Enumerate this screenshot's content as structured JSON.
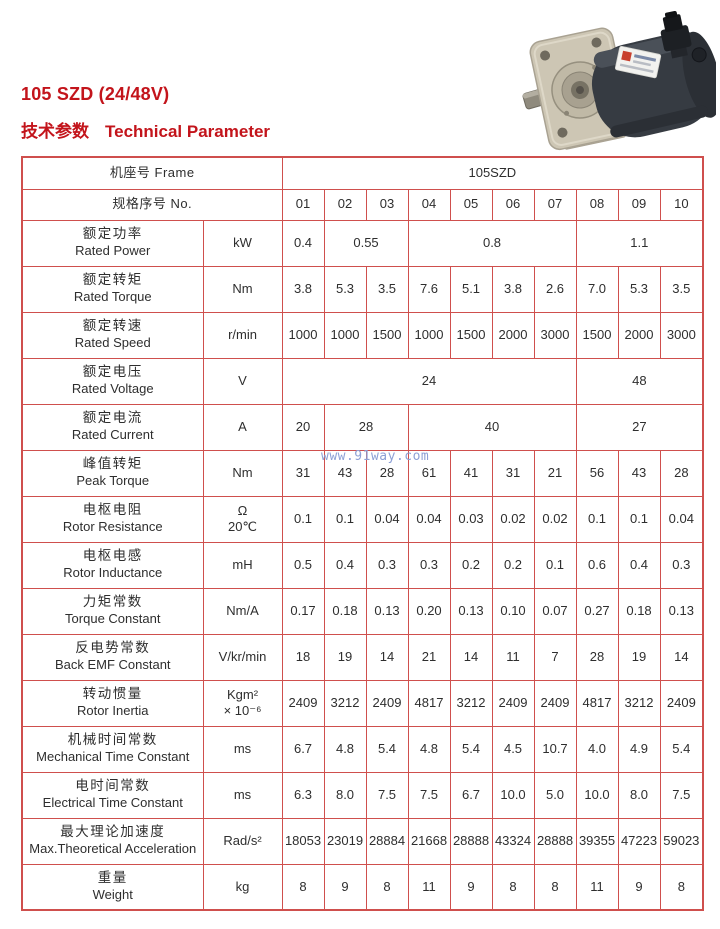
{
  "header": {
    "title": "105 SZD (24/48V)",
    "subtitle_zh": "技术参数",
    "subtitle_en": "Technical Parameter"
  },
  "colors": {
    "accent": "#c3141b",
    "table_border": "#cf4f4d",
    "text": "#2e2e2e",
    "watermark": "#8da0d6"
  },
  "watermark": {
    "text": "www.91way.com"
  },
  "motor_image": {
    "name": "dc-motor-product-photo"
  },
  "table": {
    "frame_label": "机座号 Frame",
    "frame_value": "105SZD",
    "no_label": "规格序号 No.",
    "numbers": [
      "01",
      "02",
      "03",
      "04",
      "05",
      "06",
      "07",
      "08",
      "09",
      "10"
    ],
    "rows": [
      {
        "zh": "额定功率",
        "en": "Rated Power",
        "unit": [
          "kW"
        ],
        "cells": [
          {
            "v": "0.4",
            "s": 1
          },
          {
            "v": "0.55",
            "s": 2
          },
          {
            "v": "0.8",
            "s": 4
          },
          {
            "v": "1.1",
            "s": 3
          }
        ]
      },
      {
        "zh": "额定转矩",
        "en": "Rated Torque",
        "unit": [
          "Nm"
        ],
        "cells": [
          {
            "v": "3.8",
            "s": 1
          },
          {
            "v": "5.3",
            "s": 1
          },
          {
            "v": "3.5",
            "s": 1
          },
          {
            "v": "7.6",
            "s": 1
          },
          {
            "v": "5.1",
            "s": 1
          },
          {
            "v": "3.8",
            "s": 1
          },
          {
            "v": "2.6",
            "s": 1
          },
          {
            "v": "7.0",
            "s": 1
          },
          {
            "v": "5.3",
            "s": 1
          },
          {
            "v": "3.5",
            "s": 1
          }
        ]
      },
      {
        "zh": "额定转速",
        "en": "Rated Speed",
        "unit": [
          "r/min"
        ],
        "cells": [
          {
            "v": "1000",
            "s": 1
          },
          {
            "v": "1000",
            "s": 1
          },
          {
            "v": "1500",
            "s": 1
          },
          {
            "v": "1000",
            "s": 1
          },
          {
            "v": "1500",
            "s": 1
          },
          {
            "v": "2000",
            "s": 1
          },
          {
            "v": "3000",
            "s": 1
          },
          {
            "v": "1500",
            "s": 1
          },
          {
            "v": "2000",
            "s": 1
          },
          {
            "v": "3000",
            "s": 1
          }
        ]
      },
      {
        "zh": "额定电压",
        "en": "Rated Voltage",
        "unit": [
          "V"
        ],
        "cells": [
          {
            "v": "24",
            "s": 7
          },
          {
            "v": "48",
            "s": 3
          }
        ]
      },
      {
        "zh": "额定电流",
        "en": "Rated Current",
        "unit": [
          "A"
        ],
        "cells": [
          {
            "v": "20",
            "s": 1
          },
          {
            "v": "28",
            "s": 2
          },
          {
            "v": "40",
            "s": 4
          },
          {
            "v": "27",
            "s": 3
          }
        ]
      },
      {
        "zh": "峰值转矩",
        "en": "Peak Torque",
        "unit": [
          "Nm"
        ],
        "cells": [
          {
            "v": "31",
            "s": 1
          },
          {
            "v": "43",
            "s": 1
          },
          {
            "v": "28",
            "s": 1
          },
          {
            "v": "61",
            "s": 1
          },
          {
            "v": "41",
            "s": 1
          },
          {
            "v": "31",
            "s": 1
          },
          {
            "v": "21",
            "s": 1
          },
          {
            "v": "56",
            "s": 1
          },
          {
            "v": "43",
            "s": 1
          },
          {
            "v": "28",
            "s": 1
          }
        ]
      },
      {
        "zh": "电枢电阻",
        "en": "Rotor Resistance",
        "unit": [
          "Ω",
          "20℃"
        ],
        "cells": [
          {
            "v": "0.1",
            "s": 1
          },
          {
            "v": "0.1",
            "s": 1
          },
          {
            "v": "0.04",
            "s": 1
          },
          {
            "v": "0.04",
            "s": 1
          },
          {
            "v": "0.03",
            "s": 1
          },
          {
            "v": "0.02",
            "s": 1
          },
          {
            "v": "0.02",
            "s": 1
          },
          {
            "v": "0.1",
            "s": 1
          },
          {
            "v": "0.1",
            "s": 1
          },
          {
            "v": "0.04",
            "s": 1
          }
        ]
      },
      {
        "zh": "电枢电感",
        "en": "Rotor Inductance",
        "unit": [
          "mH"
        ],
        "cells": [
          {
            "v": "0.5",
            "s": 1
          },
          {
            "v": "0.4",
            "s": 1
          },
          {
            "v": "0.3",
            "s": 1
          },
          {
            "v": "0.3",
            "s": 1
          },
          {
            "v": "0.2",
            "s": 1
          },
          {
            "v": "0.2",
            "s": 1
          },
          {
            "v": "0.1",
            "s": 1
          },
          {
            "v": "0.6",
            "s": 1
          },
          {
            "v": "0.4",
            "s": 1
          },
          {
            "v": "0.3",
            "s": 1
          }
        ]
      },
      {
        "zh": "力矩常数",
        "en": "Torque Constant",
        "unit": [
          "Nm/A"
        ],
        "cells": [
          {
            "v": "0.17",
            "s": 1
          },
          {
            "v": "0.18",
            "s": 1
          },
          {
            "v": "0.13",
            "s": 1
          },
          {
            "v": "0.20",
            "s": 1
          },
          {
            "v": "0.13",
            "s": 1
          },
          {
            "v": "0.10",
            "s": 1
          },
          {
            "v": "0.07",
            "s": 1
          },
          {
            "v": "0.27",
            "s": 1
          },
          {
            "v": "0.18",
            "s": 1
          },
          {
            "v": "0.13",
            "s": 1
          }
        ]
      },
      {
        "zh": "反电势常数",
        "en": "Back EMF Constant",
        "unit": [
          "V/kr/min"
        ],
        "cells": [
          {
            "v": "18",
            "s": 1
          },
          {
            "v": "19",
            "s": 1
          },
          {
            "v": "14",
            "s": 1
          },
          {
            "v": "21",
            "s": 1
          },
          {
            "v": "14",
            "s": 1
          },
          {
            "v": "11",
            "s": 1
          },
          {
            "v": "7",
            "s": 1
          },
          {
            "v": "28",
            "s": 1
          },
          {
            "v": "19",
            "s": 1
          },
          {
            "v": "14",
            "s": 1
          }
        ]
      },
      {
        "zh": "转动惯量",
        "en": "Rotor Inertia",
        "unit": [
          "Kgm²",
          "× 10⁻⁶"
        ],
        "cells": [
          {
            "v": "2409",
            "s": 1
          },
          {
            "v": "3212",
            "s": 1
          },
          {
            "v": "2409",
            "s": 1
          },
          {
            "v": "4817",
            "s": 1
          },
          {
            "v": "3212",
            "s": 1
          },
          {
            "v": "2409",
            "s": 1
          },
          {
            "v": "2409",
            "s": 1
          },
          {
            "v": "4817",
            "s": 1
          },
          {
            "v": "3212",
            "s": 1
          },
          {
            "v": "2409",
            "s": 1
          }
        ]
      },
      {
        "zh": "机械时间常数",
        "en": "Mechanical Time Constant",
        "unit": [
          "ms"
        ],
        "cells": [
          {
            "v": "6.7",
            "s": 1
          },
          {
            "v": "4.8",
            "s": 1
          },
          {
            "v": "5.4",
            "s": 1
          },
          {
            "v": "4.8",
            "s": 1
          },
          {
            "v": "5.4",
            "s": 1
          },
          {
            "v": "4.5",
            "s": 1
          },
          {
            "v": "10.7",
            "s": 1
          },
          {
            "v": "4.0",
            "s": 1
          },
          {
            "v": "4.9",
            "s": 1
          },
          {
            "v": "5.4",
            "s": 1
          }
        ]
      },
      {
        "zh": "电时间常数",
        "en": "Electrical Time Constant",
        "unit": [
          "ms"
        ],
        "cells": [
          {
            "v": "6.3",
            "s": 1
          },
          {
            "v": "8.0",
            "s": 1
          },
          {
            "v": "7.5",
            "s": 1
          },
          {
            "v": "7.5",
            "s": 1
          },
          {
            "v": "6.7",
            "s": 1
          },
          {
            "v": "10.0",
            "s": 1
          },
          {
            "v": "5.0",
            "s": 1
          },
          {
            "v": "10.0",
            "s": 1
          },
          {
            "v": "8.0",
            "s": 1
          },
          {
            "v": "7.5",
            "s": 1
          }
        ]
      },
      {
        "zh": "最大理论加速度",
        "en": "Max.Theoretical Acceleration",
        "unit": [
          "Rad/s²"
        ],
        "cells": [
          {
            "v": "18053",
            "s": 1
          },
          {
            "v": "23019",
            "s": 1
          },
          {
            "v": "28884",
            "s": 1
          },
          {
            "v": "21668",
            "s": 1
          },
          {
            "v": "28888",
            "s": 1
          },
          {
            "v": "43324",
            "s": 1
          },
          {
            "v": "28888",
            "s": 1
          },
          {
            "v": "39355",
            "s": 1
          },
          {
            "v": "47223",
            "s": 1
          },
          {
            "v": "59023",
            "s": 1
          }
        ]
      },
      {
        "zh": "重量",
        "en": "Weight",
        "unit": [
          "kg"
        ],
        "cells": [
          {
            "v": "8",
            "s": 1
          },
          {
            "v": "9",
            "s": 1
          },
          {
            "v": "8",
            "s": 1
          },
          {
            "v": "11",
            "s": 1
          },
          {
            "v": "9",
            "s": 1
          },
          {
            "v": "8",
            "s": 1
          },
          {
            "v": "8",
            "s": 1
          },
          {
            "v": "11",
            "s": 1
          },
          {
            "v": "9",
            "s": 1
          },
          {
            "v": "8",
            "s": 1
          }
        ]
      }
    ]
  }
}
